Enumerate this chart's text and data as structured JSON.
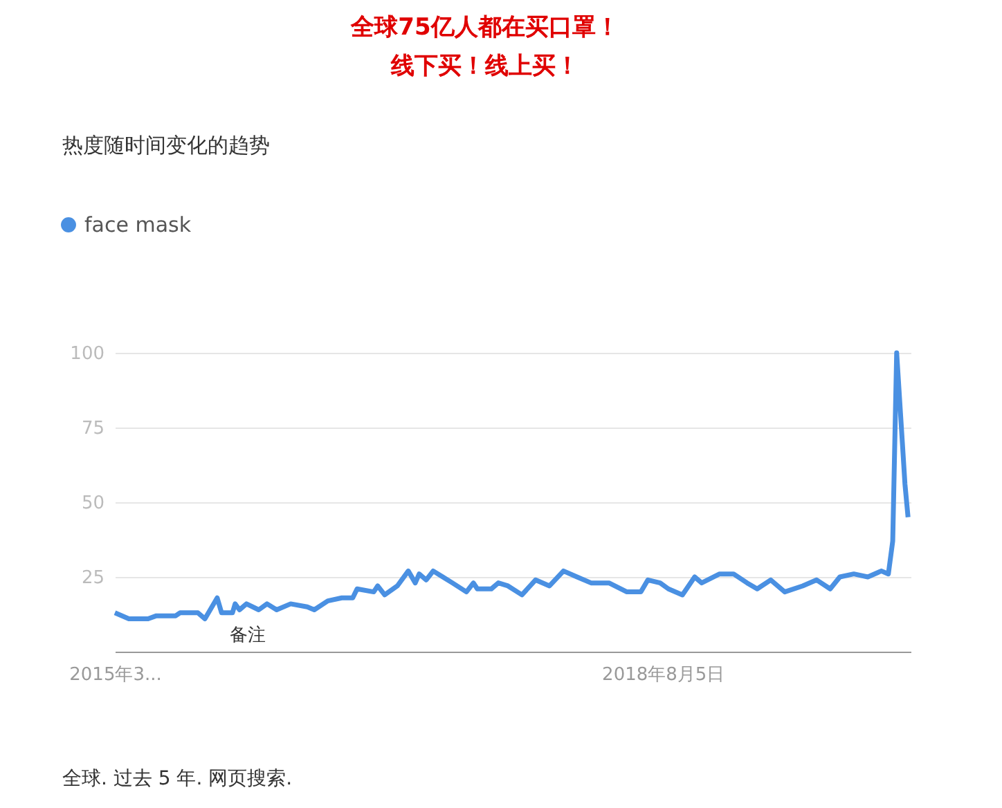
{
  "chart_data": {
    "type": "line",
    "title": "全球75亿人都在买口罩！",
    "subtitle": "线下买！线上买！",
    "annotations": [
      "热度随时间变化的趋势",
      "备注",
      "全球. 过去 5 年. 网页搜索."
    ],
    "x": [
      "2015-03-01",
      "2015-04-02",
      "2015-05-16",
      "2015-06-04",
      "2015-07-18",
      "2015-07-28",
      "2015-09-07",
      "2015-09-23",
      "2015-10-21",
      "2015-10-31",
      "2015-11-25",
      "2015-12-01",
      "2015-12-11",
      "2015-12-27",
      "2016-01-24",
      "2016-02-12",
      "2016-03-05",
      "2016-04-06",
      "2016-05-14",
      "2016-05-30",
      "2016-06-30",
      "2016-08-01",
      "2016-08-26",
      "2016-09-05",
      "2016-10-13",
      "2016-10-22",
      "2016-11-07",
      "2016-12-06",
      "2016-12-31",
      "2017-01-16",
      "2017-01-25",
      "2017-02-10",
      "2017-02-26",
      "2017-03-20",
      "2017-04-11",
      "2017-05-13",
      "2017-05-29",
      "2017-06-07",
      "2017-07-09",
      "2017-07-25",
      "2017-08-16",
      "2017-09-17",
      "2017-10-18",
      "2017-11-19",
      "2017-12-21",
      "2018-01-21",
      "2018-02-22",
      "2018-04-04",
      "2018-05-15",
      "2018-06-16",
      "2018-07-02",
      "2018-07-30",
      "2018-08-18",
      "2018-09-19",
      "2018-10-17",
      "2018-11-02",
      "2018-12-13",
      "2019-01-14",
      "2019-02-14",
      "2019-03-09",
      "2019-04-09",
      "2019-05-11",
      "2019-06-21",
      "2019-07-23",
      "2019-08-23",
      "2019-09-14",
      "2019-10-16",
      "2019-11-17",
      "2019-12-18",
      "2020-01-03",
      "2020-01-13",
      "2020-01-22",
      "2020-02-04",
      "2020-02-10",
      "2020-02-17"
    ],
    "series": [
      {
        "name": "face mask",
        "color": "#4a90e2",
        "values": [
          13,
          11,
          11,
          12,
          12,
          13,
          13,
          11,
          18,
          13,
          13,
          16,
          14,
          16,
          14,
          16,
          14,
          16,
          15,
          14,
          17,
          18,
          18,
          21,
          20,
          22,
          19,
          22,
          27,
          23,
          26,
          24,
          27,
          25,
          23,
          20,
          23,
          21,
          21,
          23,
          22,
          19,
          24,
          22,
          27,
          25,
          23,
          23,
          20,
          20,
          24,
          23,
          21,
          19,
          25,
          23,
          26,
          26,
          23,
          21,
          24,
          20,
          22,
          24,
          21,
          25,
          26,
          25,
          27,
          26,
          37,
          100,
          70,
          56,
          45
        ]
      }
    ],
    "xlim": [
      "2015-03-01",
      "2020-02-23"
    ],
    "xticks": [
      {
        "value": "2015-03-01",
        "label": "2015年3..."
      },
      {
        "value": "2018-08-05",
        "label": "2018年8月5日"
      }
    ],
    "ylim": [
      0,
      100
    ],
    "yticks": [
      25,
      50,
      75,
      100
    ],
    "grid": "y",
    "legend": "top left",
    "marker": "none",
    "line_style": "solid"
  }
}
